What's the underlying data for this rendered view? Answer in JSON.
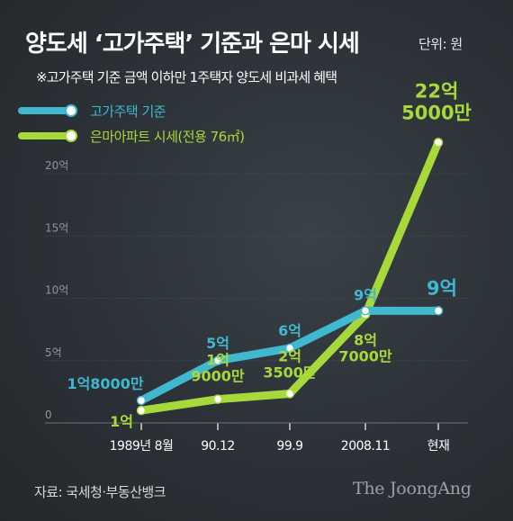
{
  "header": {
    "title": "양도세 ‘고가주택’ 기준과 은마 시세",
    "unit": "단위: 원",
    "note": "※고가주택 기준 금액 이하만 1주택자 양도세 비과세 혜택"
  },
  "footer": {
    "source": "자료: 국세청·부동산뱅크",
    "brand": "The JoongAng"
  },
  "chart_data": {
    "type": "line",
    "title": "양도세 ‘고가주택’ 기준과 은마 시세",
    "x": [
      "1989년 8월",
      "90.12",
      "99.9",
      "2008.11",
      "현재"
    ],
    "yticks": [
      "0",
      "5억",
      "10억",
      "15억",
      "20억"
    ],
    "ylim": [
      0,
      22.5
    ],
    "grid": true,
    "legend_position": "top-left",
    "series": [
      {
        "name": "고가주택 기준",
        "color": "#3fb8d0",
        "values": [
          1.8,
          5,
          6,
          9,
          9
        ],
        "labels": [
          "1억8000만",
          "5억",
          "6억",
          "9억",
          "9억"
        ]
      },
      {
        "name": "은마아파트 시세(전용 76㎡)",
        "color": "#a8d93a",
        "values": [
          1,
          1.9,
          2.35,
          8.7,
          22.5
        ],
        "labels": [
          "1억",
          "1억\n9000만",
          "2억\n3500만",
          "8억\n7000만",
          "22억\n5000만"
        ]
      }
    ]
  }
}
